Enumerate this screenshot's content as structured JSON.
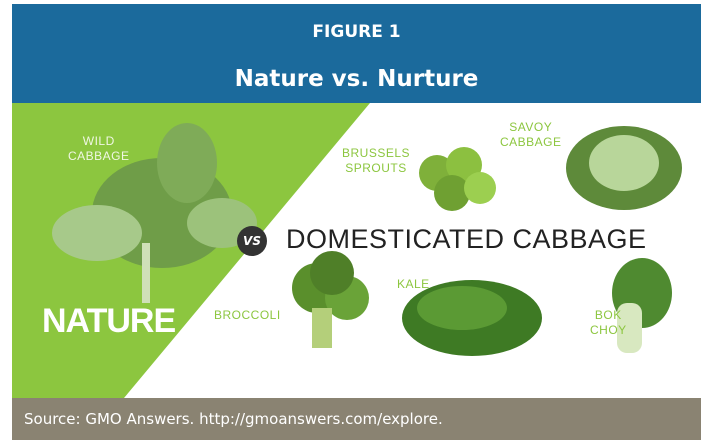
{
  "header": {
    "label": "FIGURE 1",
    "title": "Nature vs. Nurture"
  },
  "figure": {
    "nature": "NATURE",
    "vs": "VS",
    "domesticated": "DOMESTICATED CABBAGE",
    "plants": [
      {
        "lines": [
          "WILD",
          "CABBAGE"
        ]
      },
      {
        "lines": [
          "BRUSSELS",
          "SPROUTS"
        ]
      },
      {
        "lines": [
          "SAVOY",
          "CABBAGE"
        ]
      },
      {
        "lines": [
          "BROCCOLI"
        ]
      },
      {
        "lines": [
          "KALE"
        ]
      },
      {
        "lines": [
          "BOK",
          "CHOY"
        ]
      }
    ]
  },
  "source": "Source: GMO Answers. http://gmoanswers.com/explore."
}
